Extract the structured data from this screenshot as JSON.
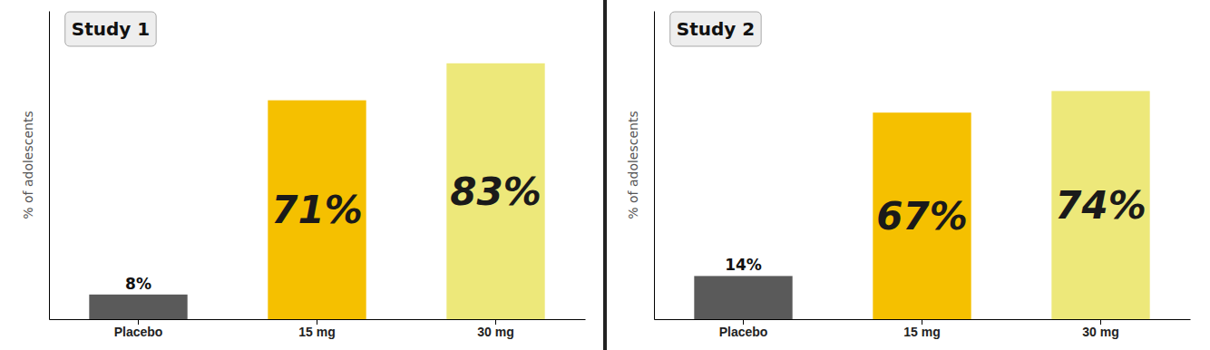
{
  "chart_data": [
    {
      "type": "bar",
      "title": "Study 1",
      "categories": [
        "Placebo",
        "15 mg",
        "30 mg"
      ],
      "values": [
        8,
        71,
        83
      ],
      "value_labels": [
        "8%",
        "71%",
        "83%"
      ],
      "data_labels": true,
      "colors": [
        "#5a5a5a",
        "#F5C000",
        "#EDE87A"
      ],
      "ylabel": "% of adolescents",
      "ylim": [
        0,
        100
      ],
      "yticks": [],
      "tick_labels": "x"
    },
    {
      "type": "bar",
      "title": "Study 2",
      "categories": [
        "Placebo",
        "15 mg",
        "30 mg"
      ],
      "values": [
        14,
        67,
        74
      ],
      "value_labels": [
        "14%",
        "67%",
        "74%"
      ],
      "data_labels": true,
      "colors": [
        "#5a5a5a",
        "#F5C000",
        "#EDE87A"
      ],
      "ylabel": "% of adolescents",
      "ylim": [
        0,
        100
      ],
      "yticks": [],
      "tick_labels": "x"
    }
  ]
}
